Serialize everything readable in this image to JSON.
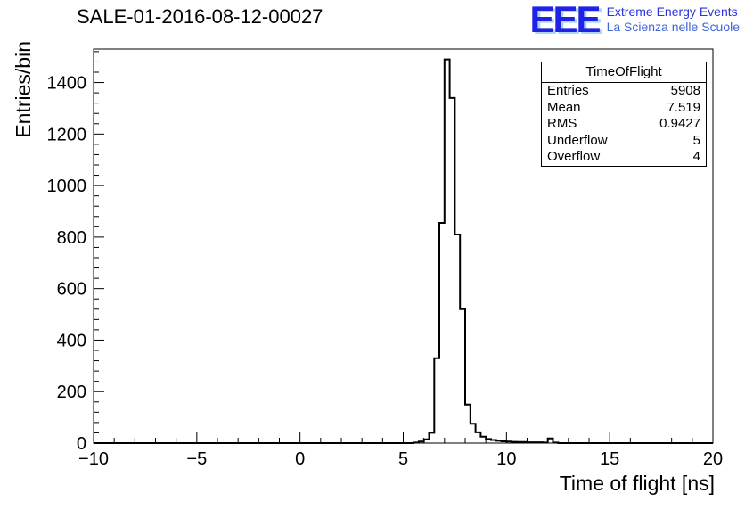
{
  "page": {
    "title": "SALE-01-2016-08-12-00027"
  },
  "logo": {
    "letters": "EEE",
    "line1": "Extreme Energy Events",
    "line2": "La Scienza nelle Scuole",
    "letter_color": "#2023e6",
    "letter_shadow": "#a9d6f2",
    "line1_color": "#2a35dd",
    "line2_color": "#3f66d9"
  },
  "stats": {
    "title": "TimeOfFlight",
    "rows": [
      {
        "label": "Entries",
        "value": "5908"
      },
      {
        "label": "Mean",
        "value": "7.519"
      },
      {
        "label": "RMS",
        "value": "0.9427"
      },
      {
        "label": "Underflow",
        "value": "5"
      },
      {
        "label": "Overflow",
        "value": "4"
      }
    ]
  },
  "chart_data": {
    "type": "bar",
    "style": "step-histogram",
    "title": "SALE-01-2016-08-12-00027",
    "xlabel": "Time of flight [ns]",
    "ylabel": "Entries/bin",
    "xlim": [
      -10,
      20
    ],
    "ylim": [
      0,
      1530
    ],
    "x_ticks": [
      -10,
      -5,
      0,
      5,
      10,
      15,
      20
    ],
    "x_tick_labels": [
      "−10",
      "−5",
      "0",
      "5",
      "10",
      "15",
      "20"
    ],
    "x_minor_step": 1,
    "y_ticks": [
      0,
      200,
      400,
      600,
      800,
      1000,
      1200,
      1400
    ],
    "y_tick_labels": [
      "0",
      "200",
      "400",
      "600",
      "800",
      "1000",
      "1200",
      "1400"
    ],
    "y_minor_step": 40,
    "line_color": "#000000",
    "grid": false,
    "legend": "none",
    "bin_width": 0.25,
    "bin_start": 5.5,
    "counts": [
      2,
      6,
      15,
      40,
      330,
      855,
      1490,
      1340,
      810,
      520,
      150,
      75,
      42,
      25,
      16,
      12,
      9,
      7,
      6,
      5,
      4,
      4,
      3,
      3,
      3,
      2,
      18,
      2
    ]
  }
}
